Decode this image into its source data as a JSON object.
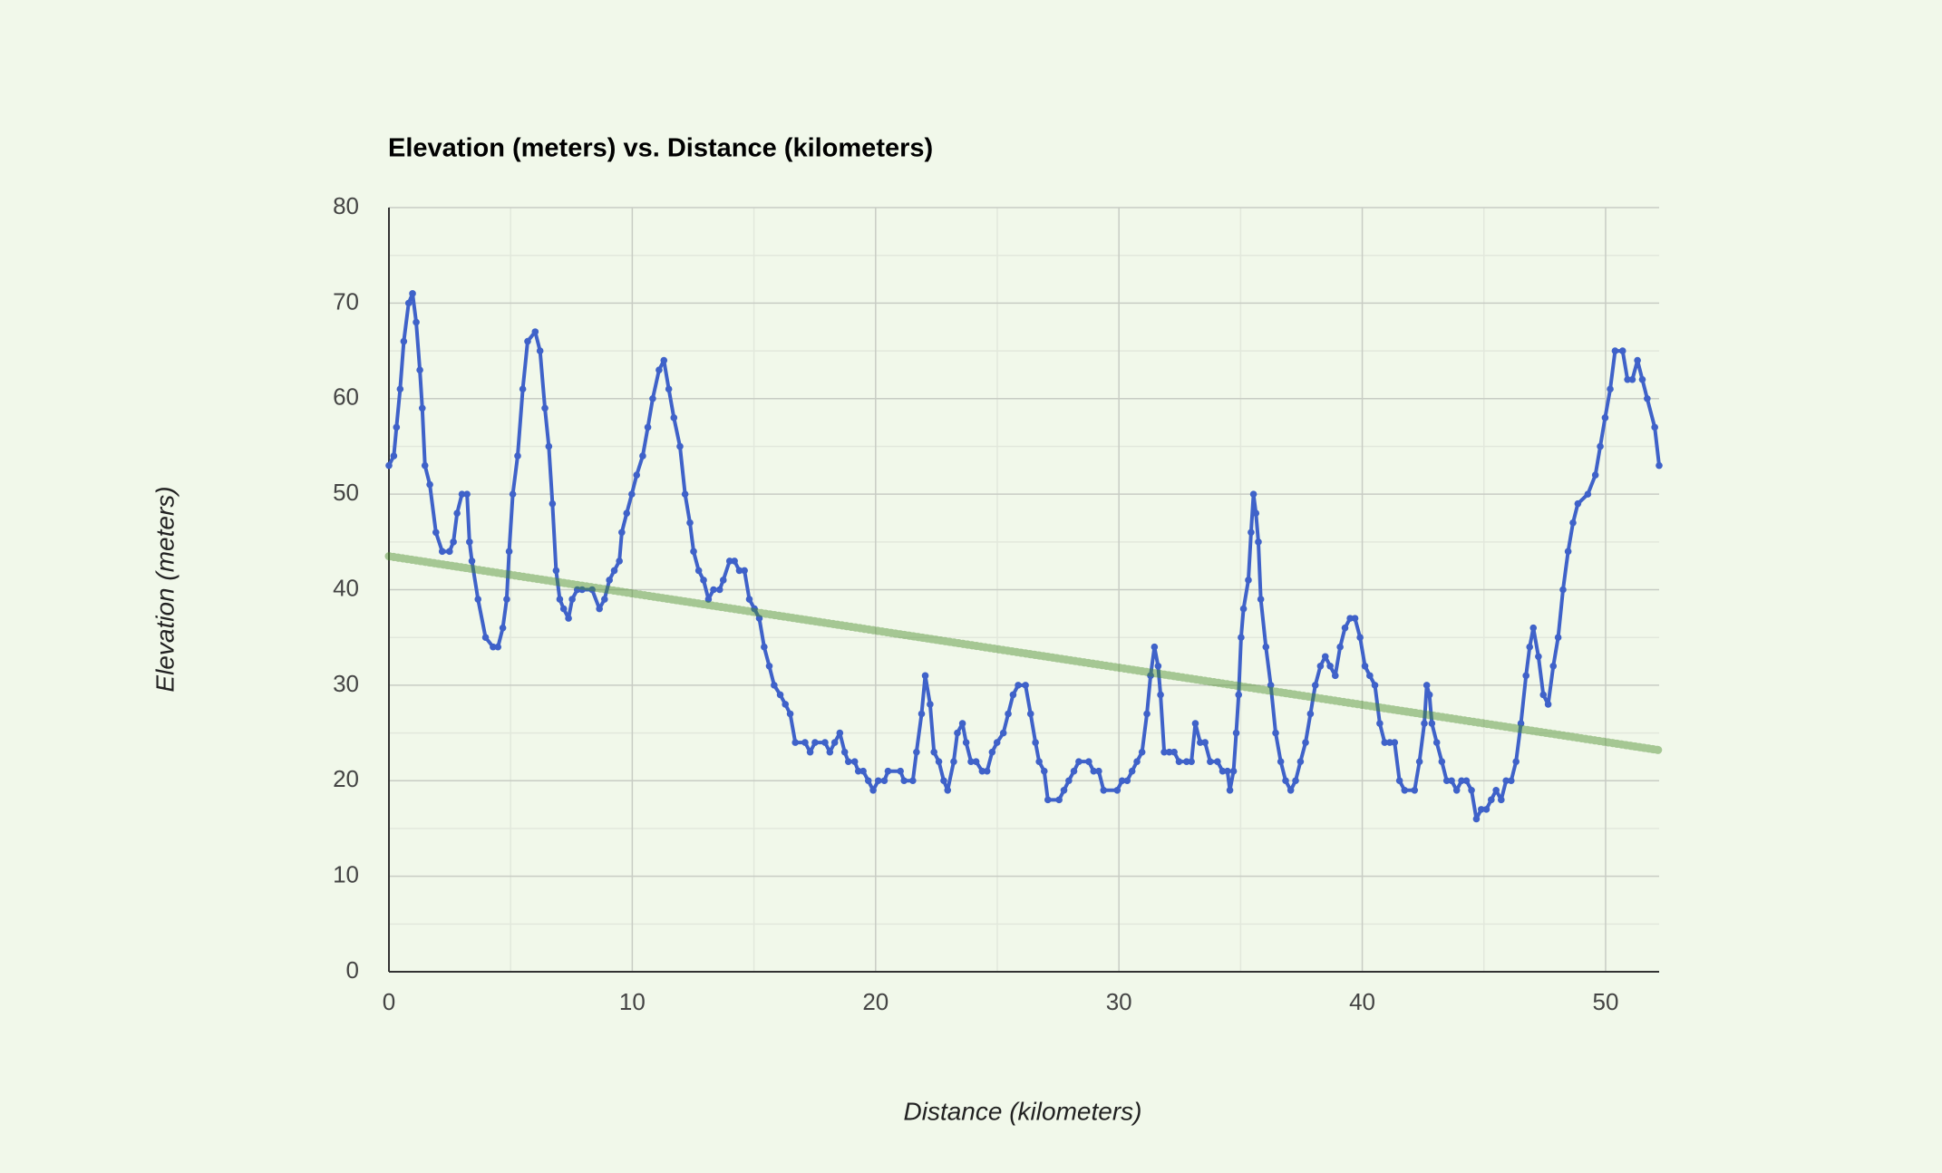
{
  "chart_data": {
    "type": "line",
    "title": "Elevation (meters) vs. Distance (kilometers)",
    "x_label": "Distance (kilometers)",
    "y_label": "Elevation (meters)",
    "color": "#3f62c9",
    "x": [
      0,
      0.2,
      0.31,
      0.46,
      0.61,
      0.81,
      0.97,
      1.12,
      1.27,
      1.37,
      1.48,
      1.68,
      1.93,
      2.19,
      2.49,
      2.65,
      2.8,
      3.0,
      3.21,
      3.31,
      3.41,
      3.66,
      3.97,
      4.28,
      4.48,
      4.68,
      4.84,
      4.94,
      5.09,
      5.29,
      5.5,
      5.7,
      6.01,
      6.21,
      6.41,
      6.57,
      6.72,
      6.87,
      7.02,
      7.18,
      7.38,
      7.53,
      7.74,
      7.94,
      8.35,
      8.65,
      8.86,
      9.06,
      9.26,
      9.47,
      9.57,
      9.77,
      9.98,
      10.18,
      10.43,
      10.64,
      10.84,
      11.1,
      11.3,
      11.5,
      11.71,
      11.96,
      12.17,
      12.37,
      12.52,
      12.73,
      12.93,
      13.13,
      13.34,
      13.59,
      13.74,
      14.0,
      14.2,
      14.4,
      14.61,
      14.81,
      15.02,
      15.22,
      15.42,
      15.63,
      15.83,
      16.08,
      16.29,
      16.49,
      16.7,
      17.1,
      17.31,
      17.51,
      17.92,
      18.12,
      18.32,
      18.53,
      18.73,
      18.88,
      19.14,
      19.29,
      19.49,
      19.7,
      19.9,
      20.11,
      20.36,
      20.51,
      21.02,
      21.17,
      21.53,
      21.68,
      21.89,
      22.04,
      22.24,
      22.4,
      22.6,
      22.8,
      22.96,
      23.21,
      23.36,
      23.57,
      23.72,
      23.92,
      24.13,
      24.38,
      24.58,
      24.79,
      24.99,
      25.25,
      25.45,
      25.65,
      25.86,
      26.16,
      26.37,
      26.57,
      26.72,
      26.93,
      27.08,
      27.54,
      27.74,
      27.94,
      28.15,
      28.35,
      28.76,
      28.96,
      29.17,
      29.37,
      29.93,
      30.13,
      30.34,
      30.54,
      30.74,
      30.95,
      31.15,
      31.3,
      31.46,
      31.61,
      31.71,
      31.86,
      32.07,
      32.27,
      32.47,
      32.78,
      32.98,
      33.14,
      33.34,
      33.54,
      33.75,
      34.05,
      34.26,
      34.46,
      34.56,
      34.71,
      34.82,
      34.92,
      35.02,
      35.12,
      35.32,
      35.43,
      35.53,
      35.63,
      35.73,
      35.83,
      36.04,
      36.24,
      36.44,
      36.65,
      36.85,
      37.06,
      37.26,
      37.46,
      37.67,
      37.87,
      38.07,
      38.28,
      38.48,
      38.68,
      38.89,
      39.09,
      39.29,
      39.5,
      39.7,
      39.91,
      40.11,
      40.31,
      40.52,
      40.72,
      40.92,
      41.13,
      41.33,
      41.53,
      41.74,
      42.15,
      42.35,
      42.55,
      42.65,
      42.76,
      42.86,
      43.06,
      43.27,
      43.47,
      43.67,
      43.88,
      44.08,
      44.28,
      44.49,
      44.69,
      44.89,
      45.1,
      45.3,
      45.5,
      45.71,
      45.91,
      46.12,
      46.32,
      46.52,
      46.73,
      46.88,
      47.03,
      47.24,
      47.44,
      47.64,
      47.85,
      48.05,
      48.25,
      48.46,
      48.66,
      48.86,
      49.27,
      49.58,
      49.78,
      49.98,
      50.19,
      50.39,
      50.7,
      50.9,
      51.1,
      51.31,
      51.51,
      51.71,
      52.02,
      52.2
    ],
    "values": [
      53,
      54,
      57,
      61,
      66,
      70,
      71,
      68,
      63,
      59,
      53,
      51,
      46,
      44,
      44,
      45,
      48,
      50,
      50,
      45,
      43,
      39,
      35,
      34,
      34,
      36,
      39,
      44,
      50,
      54,
      61,
      66,
      67,
      65,
      59,
      55,
      49,
      42,
      39,
      38,
      37,
      39,
      40,
      40,
      40,
      38,
      39,
      41,
      42,
      43,
      46,
      48,
      50,
      52,
      54,
      57,
      60,
      63,
      64,
      61,
      58,
      55,
      50,
      47,
      44,
      42,
      41,
      39,
      40,
      40,
      41,
      43,
      43,
      42,
      42,
      39,
      38,
      37,
      34,
      32,
      30,
      29,
      28,
      27,
      24,
      24,
      23,
      24,
      24,
      23,
      24,
      25,
      23,
      22,
      22,
      21,
      21,
      20,
      19,
      20,
      20,
      21,
      21,
      20,
      20,
      23,
      27,
      31,
      28,
      23,
      22,
      20,
      19,
      22,
      25,
      26,
      24,
      22,
      22,
      21,
      21,
      23,
      24,
      25,
      27,
      29,
      30,
      30,
      27,
      24,
      22,
      21,
      18,
      18,
      19,
      20,
      21,
      22,
      22,
      21,
      21,
      19,
      19,
      20,
      20,
      21,
      22,
      23,
      27,
      31,
      34,
      32,
      29,
      23,
      23,
      23,
      22,
      22,
      22,
      26,
      24,
      24,
      22,
      22,
      21,
      21,
      19,
      21,
      25,
      29,
      35,
      38,
      41,
      46,
      50,
      48,
      45,
      39,
      34,
      30,
      25,
      22,
      20,
      19,
      20,
      22,
      24,
      27,
      30,
      32,
      33,
      32,
      31,
      34,
      36,
      37,
      37,
      35,
      32,
      31,
      30,
      26,
      24,
      24,
      24,
      20,
      19,
      19,
      22,
      26,
      30,
      29,
      26,
      24,
      22,
      20,
      20,
      19,
      20,
      20,
      19,
      16,
      17,
      17,
      18,
      19,
      18,
      20,
      20,
      22,
      26,
      31,
      34,
      36,
      33,
      29,
      28,
      32,
      35,
      40,
      44,
      47,
      49,
      50,
      52,
      55,
      58,
      61,
      65,
      65,
      62,
      62,
      64,
      62,
      60,
      57,
      53
    ],
    "trendline": {
      "color": "#4a8c2a",
      "x": [
        0,
        52.2
      ],
      "y": [
        43.5,
        23.2
      ]
    },
    "xlim": [
      0,
      52.2
    ],
    "xticks": [
      0,
      10,
      20,
      30,
      40,
      50
    ],
    "ylim": [
      0,
      80
    ],
    "yticks": [
      0,
      10,
      20,
      30,
      40,
      50,
      60,
      70,
      80
    ],
    "x_minor_ticks": [
      5,
      15,
      25,
      35,
      45
    ],
    "y_minor_ticks": [
      5,
      15,
      25,
      35,
      45,
      55,
      65,
      75
    ],
    "grid": true
  }
}
